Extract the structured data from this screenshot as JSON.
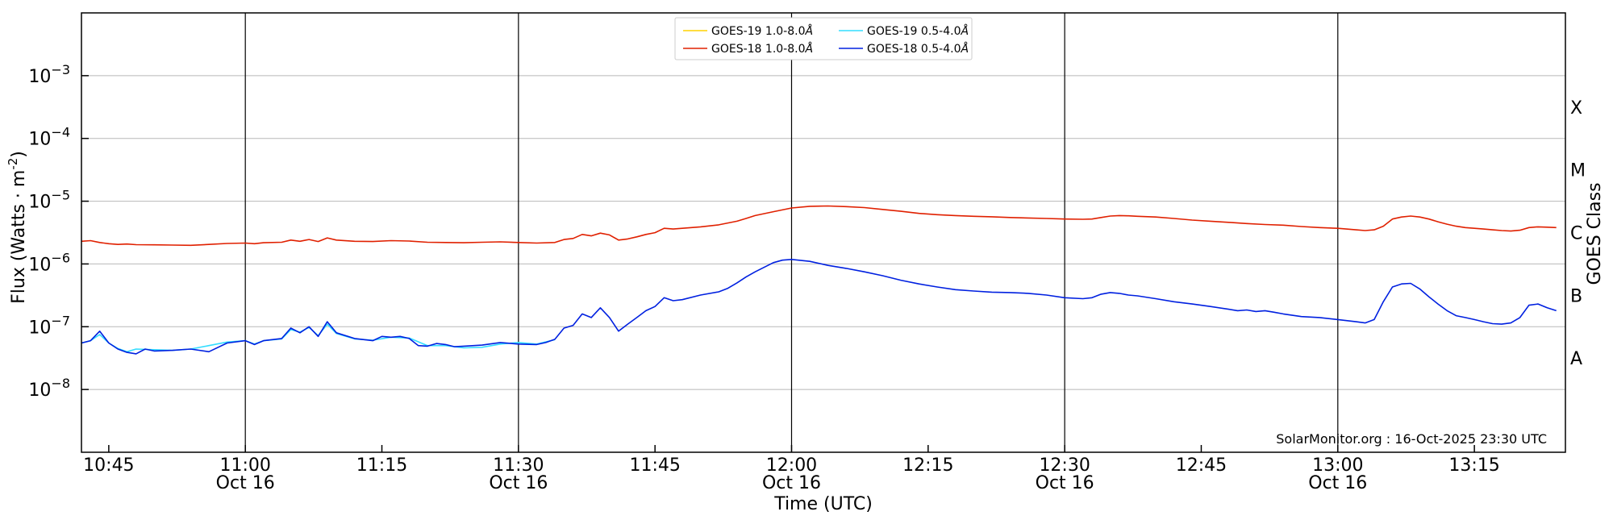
{
  "chart_data": {
    "type": "line",
    "xlabel": "Time (UTC)",
    "ylabel": "Flux (Watts · m",
    "ylabel_sup": "-2",
    "ylabel_end": ")",
    "right_label": "GOES Class",
    "y_scale": "log",
    "ylim_exponent": [
      -9,
      -2
    ],
    "y_ticks": [
      {
        "exp": -8,
        "base": "10",
        "sup": "−8"
      },
      {
        "exp": -7,
        "base": "10",
        "sup": "−7"
      },
      {
        "exp": -6,
        "base": "10",
        "sup": "−6"
      },
      {
        "exp": -5,
        "base": "10",
        "sup": "−5"
      },
      {
        "exp": -4,
        "base": "10",
        "sup": "−4"
      },
      {
        "exp": -3,
        "base": "10",
        "sup": "−3"
      }
    ],
    "goes_classes": [
      {
        "label": "A",
        "exp": -7.5
      },
      {
        "label": "B",
        "exp": -6.5
      },
      {
        "label": "C",
        "exp": -5.5
      },
      {
        "label": "M",
        "exp": -4.5
      },
      {
        "label": "X",
        "exp": -3.5
      }
    ],
    "xlim_min": [
      642,
      805
    ],
    "x_ticks": [
      {
        "t": 645,
        "time": "10:45",
        "date": ""
      },
      {
        "t": 660,
        "time": "11:00",
        "date": "Oct 16"
      },
      {
        "t": 675,
        "time": "11:15",
        "date": ""
      },
      {
        "t": 690,
        "time": "11:30",
        "date": "Oct 16"
      },
      {
        "t": 705,
        "time": "11:45",
        "date": ""
      },
      {
        "t": 720,
        "time": "12:00",
        "date": "Oct 16"
      },
      {
        "t": 735,
        "time": "12:15",
        "date": ""
      },
      {
        "t": 750,
        "time": "12:30",
        "date": "Oct 16"
      },
      {
        "t": 765,
        "time": "12:45",
        "date": ""
      },
      {
        "t": 780,
        "time": "13:00",
        "date": "Oct 16"
      },
      {
        "t": 795,
        "time": "13:15",
        "date": ""
      }
    ],
    "vlines": [
      660,
      690,
      720,
      750,
      780
    ],
    "grid": true,
    "legend_position": "top-center",
    "legend": [
      {
        "name": "GOES-19 1.0-8.0",
        "unit": "Å",
        "color": "#ffd200"
      },
      {
        "name": "GOES-19 0.5-4.0",
        "unit": "Å",
        "color": "#33ddff"
      },
      {
        "name": "GOES-18 1.0-8.0",
        "unit": "Å",
        "color": "#e02000"
      },
      {
        "name": "GOES-18 0.5-4.0",
        "unit": "Å",
        "color": "#0020e0"
      }
    ],
    "series": [
      {
        "name": "GOES-18 1.0-8.0Å",
        "color": "#e02000",
        "points": [
          [
            642,
            2.3e-06
          ],
          [
            643,
            2.35e-06
          ],
          [
            644,
            2.2e-06
          ],
          [
            645,
            2.1e-06
          ],
          [
            646,
            2.05e-06
          ],
          [
            647,
            2.08e-06
          ],
          [
            648,
            2.03e-06
          ],
          [
            650,
            2.02e-06
          ],
          [
            652,
            2e-06
          ],
          [
            654,
            1.98e-06
          ],
          [
            656,
            2.05e-06
          ],
          [
            658,
            2.12e-06
          ],
          [
            660,
            2.15e-06
          ],
          [
            661,
            2.1e-06
          ],
          [
            662,
            2.18e-06
          ],
          [
            664,
            2.22e-06
          ],
          [
            665,
            2.4e-06
          ],
          [
            666,
            2.3e-06
          ],
          [
            667,
            2.45e-06
          ],
          [
            668,
            2.28e-06
          ],
          [
            669,
            2.6e-06
          ],
          [
            670,
            2.4e-06
          ],
          [
            672,
            2.3e-06
          ],
          [
            674,
            2.28e-06
          ],
          [
            676,
            2.35e-06
          ],
          [
            678,
            2.32e-06
          ],
          [
            680,
            2.22e-06
          ],
          [
            682,
            2.2e-06
          ],
          [
            684,
            2.18e-06
          ],
          [
            686,
            2.22e-06
          ],
          [
            688,
            2.25e-06
          ],
          [
            690,
            2.2e-06
          ],
          [
            692,
            2.15e-06
          ],
          [
            694,
            2.2e-06
          ],
          [
            695,
            2.45e-06
          ],
          [
            696,
            2.55e-06
          ],
          [
            697,
            2.95e-06
          ],
          [
            698,
            2.8e-06
          ],
          [
            699,
            3.1e-06
          ],
          [
            700,
            2.9e-06
          ],
          [
            701,
            2.4e-06
          ],
          [
            702,
            2.5e-06
          ],
          [
            703,
            2.7e-06
          ],
          [
            704,
            2.95e-06
          ],
          [
            705,
            3.15e-06
          ],
          [
            706,
            3.7e-06
          ],
          [
            707,
            3.6e-06
          ],
          [
            708,
            3.7e-06
          ],
          [
            710,
            3.9e-06
          ],
          [
            712,
            4.2e-06
          ],
          [
            714,
            4.8e-06
          ],
          [
            715,
            5.3e-06
          ],
          [
            716,
            5.9e-06
          ],
          [
            718,
            6.8e-06
          ],
          [
            720,
            7.8e-06
          ],
          [
            722,
            8.3e-06
          ],
          [
            724,
            8.4e-06
          ],
          [
            726,
            8.2e-06
          ],
          [
            728,
            7.9e-06
          ],
          [
            730,
            7.4e-06
          ],
          [
            732,
            6.9e-06
          ],
          [
            734,
            6.4e-06
          ],
          [
            736,
            6.1e-06
          ],
          [
            738,
            5.9e-06
          ],
          [
            740,
            5.75e-06
          ],
          [
            742,
            5.65e-06
          ],
          [
            744,
            5.5e-06
          ],
          [
            746,
            5.4e-06
          ],
          [
            748,
            5.3e-06
          ],
          [
            750,
            5.2e-06
          ],
          [
            752,
            5.15e-06
          ],
          [
            753,
            5.2e-06
          ],
          [
            754,
            5.5e-06
          ],
          [
            755,
            5.8e-06
          ],
          [
            756,
            5.9e-06
          ],
          [
            757,
            5.85e-06
          ],
          [
            758,
            5.75e-06
          ],
          [
            760,
            5.6e-06
          ],
          [
            762,
            5.3e-06
          ],
          [
            764,
            5e-06
          ],
          [
            766,
            4.8e-06
          ],
          [
            768,
            4.6e-06
          ],
          [
            770,
            4.4e-06
          ],
          [
            772,
            4.25e-06
          ],
          [
            774,
            4.15e-06
          ],
          [
            776,
            3.95e-06
          ],
          [
            778,
            3.8e-06
          ],
          [
            780,
            3.7e-06
          ],
          [
            782,
            3.5e-06
          ],
          [
            783,
            3.4e-06
          ],
          [
            784,
            3.5e-06
          ],
          [
            785,
            4e-06
          ],
          [
            786,
            5.2e-06
          ],
          [
            787,
            5.6e-06
          ],
          [
            788,
            5.8e-06
          ],
          [
            789,
            5.6e-06
          ],
          [
            790,
            5.2e-06
          ],
          [
            791,
            4.7e-06
          ],
          [
            792,
            4.3e-06
          ],
          [
            793,
            4e-06
          ],
          [
            794,
            3.8e-06
          ],
          [
            795,
            3.7e-06
          ],
          [
            796,
            3.6e-06
          ],
          [
            797,
            3.5e-06
          ],
          [
            798,
            3.4e-06
          ],
          [
            799,
            3.35e-06
          ],
          [
            800,
            3.45e-06
          ],
          [
            801,
            3.8e-06
          ],
          [
            802,
            3.9e-06
          ],
          [
            803,
            3.85e-06
          ],
          [
            804,
            3.8e-06
          ]
        ]
      },
      {
        "name": "GOES-19 0.5-4.0Å",
        "color": "#33ddff",
        "points": [
          [
            642,
            5.5e-08
          ],
          [
            643,
            6e-08
          ],
          [
            644,
            7.5e-08
          ],
          [
            645,
            5.5e-08
          ],
          [
            646,
            4.5e-08
          ],
          [
            647,
            4e-08
          ],
          [
            648,
            4.4e-08
          ],
          [
            650,
            4.3e-08
          ],
          [
            652,
            4.2e-08
          ],
          [
            654,
            4.4e-08
          ],
          [
            656,
            5e-08
          ],
          [
            658,
            5.7e-08
          ],
          [
            660,
            6e-08
          ],
          [
            661,
            5.3e-08
          ],
          [
            662,
            6e-08
          ],
          [
            664,
            6.4e-08
          ],
          [
            665,
            9e-08
          ],
          [
            666,
            8.2e-08
          ],
          [
            667,
            9.8e-08
          ],
          [
            668,
            7.2e-08
          ],
          [
            669,
            1.1e-07
          ],
          [
            670,
            7.8e-08
          ],
          [
            672,
            6.4e-08
          ],
          [
            674,
            6.1e-08
          ],
          [
            676,
            6.8e-08
          ],
          [
            678,
            6.6e-08
          ],
          [
            680,
            5e-08
          ],
          [
            682,
            5e-08
          ],
          [
            684,
            4.6e-08
          ],
          [
            686,
            4.7e-08
          ],
          [
            688,
            5.3e-08
          ],
          [
            690,
            5.6e-08
          ],
          [
            692,
            5.3e-08
          ],
          [
            694,
            6.2e-08
          ]
        ]
      },
      {
        "name": "GOES-18 0.5-4.0Å",
        "color": "#0020e0",
        "points": [
          [
            642,
            5.5e-08
          ],
          [
            643,
            6e-08
          ],
          [
            644,
            8.5e-08
          ],
          [
            645,
            5.5e-08
          ],
          [
            646,
            4.4e-08
          ],
          [
            647,
            3.9e-08
          ],
          [
            648,
            3.7e-08
          ],
          [
            649,
            4.4e-08
          ],
          [
            650,
            4.1e-08
          ],
          [
            652,
            4.2e-08
          ],
          [
            654,
            4.4e-08
          ],
          [
            656,
            4e-08
          ],
          [
            658,
            5.5e-08
          ],
          [
            660,
            6e-08
          ],
          [
            661,
            5.2e-08
          ],
          [
            662,
            6e-08
          ],
          [
            664,
            6.5e-08
          ],
          [
            665,
            9.5e-08
          ],
          [
            666,
            8e-08
          ],
          [
            667,
            1e-07
          ],
          [
            668,
            7e-08
          ],
          [
            669,
            1.2e-07
          ],
          [
            670,
            8e-08
          ],
          [
            672,
            6.5e-08
          ],
          [
            674,
            6e-08
          ],
          [
            675,
            7e-08
          ],
          [
            676,
            6.8e-08
          ],
          [
            677,
            7e-08
          ],
          [
            678,
            6.5e-08
          ],
          [
            679,
            5e-08
          ],
          [
            680,
            4.9e-08
          ],
          [
            681,
            5.4e-08
          ],
          [
            682,
            5.2e-08
          ],
          [
            683,
            4.8e-08
          ],
          [
            684,
            4.9e-08
          ],
          [
            686,
            5.1e-08
          ],
          [
            688,
            5.6e-08
          ],
          [
            690,
            5.3e-08
          ],
          [
            692,
            5.2e-08
          ],
          [
            693,
            5.6e-08
          ],
          [
            694,
            6.3e-08
          ],
          [
            695,
            9.5e-08
          ],
          [
            696,
            1.05e-07
          ],
          [
            697,
            1.6e-07
          ],
          [
            698,
            1.4e-07
          ],
          [
            699,
            2e-07
          ],
          [
            700,
            1.4e-07
          ],
          [
            701,
            8.5e-08
          ],
          [
            702,
            1.1e-07
          ],
          [
            703,
            1.4e-07
          ],
          [
            704,
            1.8e-07
          ],
          [
            705,
            2.1e-07
          ],
          [
            706,
            2.9e-07
          ],
          [
            707,
            2.6e-07
          ],
          [
            708,
            2.7e-07
          ],
          [
            710,
            3.2e-07
          ],
          [
            712,
            3.6e-07
          ],
          [
            713,
            4.1e-07
          ],
          [
            714,
            5e-07
          ],
          [
            715,
            6.2e-07
          ],
          [
            716,
            7.5e-07
          ],
          [
            718,
            1.05e-06
          ],
          [
            719,
            1.15e-06
          ],
          [
            720,
            1.18e-06
          ],
          [
            722,
            1.1e-06
          ],
          [
            724,
            9.5e-07
          ],
          [
            726,
            8.5e-07
          ],
          [
            728,
            7.5e-07
          ],
          [
            730,
            6.5e-07
          ],
          [
            732,
            5.5e-07
          ],
          [
            734,
            4.8e-07
          ],
          [
            736,
            4.3e-07
          ],
          [
            738,
            3.9e-07
          ],
          [
            740,
            3.7e-07
          ],
          [
            742,
            3.55e-07
          ],
          [
            744,
            3.5e-07
          ],
          [
            746,
            3.4e-07
          ],
          [
            748,
            3.2e-07
          ],
          [
            750,
            2.9e-07
          ],
          [
            752,
            2.8e-07
          ],
          [
            753,
            2.9e-07
          ],
          [
            754,
            3.3e-07
          ],
          [
            755,
            3.5e-07
          ],
          [
            756,
            3.4e-07
          ],
          [
            757,
            3.2e-07
          ],
          [
            758,
            3.1e-07
          ],
          [
            760,
            2.8e-07
          ],
          [
            762,
            2.5e-07
          ],
          [
            764,
            2.3e-07
          ],
          [
            766,
            2.1e-07
          ],
          [
            768,
            1.9e-07
          ],
          [
            769,
            1.8e-07
          ],
          [
            770,
            1.85e-07
          ],
          [
            771,
            1.75e-07
          ],
          [
            772,
            1.8e-07
          ],
          [
            773,
            1.7e-07
          ],
          [
            774,
            1.6e-07
          ],
          [
            776,
            1.45e-07
          ],
          [
            778,
            1.4e-07
          ],
          [
            780,
            1.3e-07
          ],
          [
            782,
            1.2e-07
          ],
          [
            783,
            1.15e-07
          ],
          [
            784,
            1.3e-07
          ],
          [
            785,
            2.5e-07
          ],
          [
            786,
            4.3e-07
          ],
          [
            787,
            4.8e-07
          ],
          [
            788,
            4.9e-07
          ],
          [
            789,
            4e-07
          ],
          [
            790,
            3e-07
          ],
          [
            791,
            2.3e-07
          ],
          [
            792,
            1.8e-07
          ],
          [
            793,
            1.5e-07
          ],
          [
            794,
            1.4e-07
          ],
          [
            795,
            1.3e-07
          ],
          [
            796,
            1.2e-07
          ],
          [
            797,
            1.12e-07
          ],
          [
            798,
            1.1e-07
          ],
          [
            799,
            1.15e-07
          ],
          [
            800,
            1.4e-07
          ],
          [
            801,
            2.2e-07
          ],
          [
            802,
            2.3e-07
          ],
          [
            803,
            2e-07
          ],
          [
            804,
            1.8e-07
          ]
        ]
      }
    ],
    "watermark": "SolarMonitor.org : 16-Oct-2025 23:30 UTC"
  }
}
